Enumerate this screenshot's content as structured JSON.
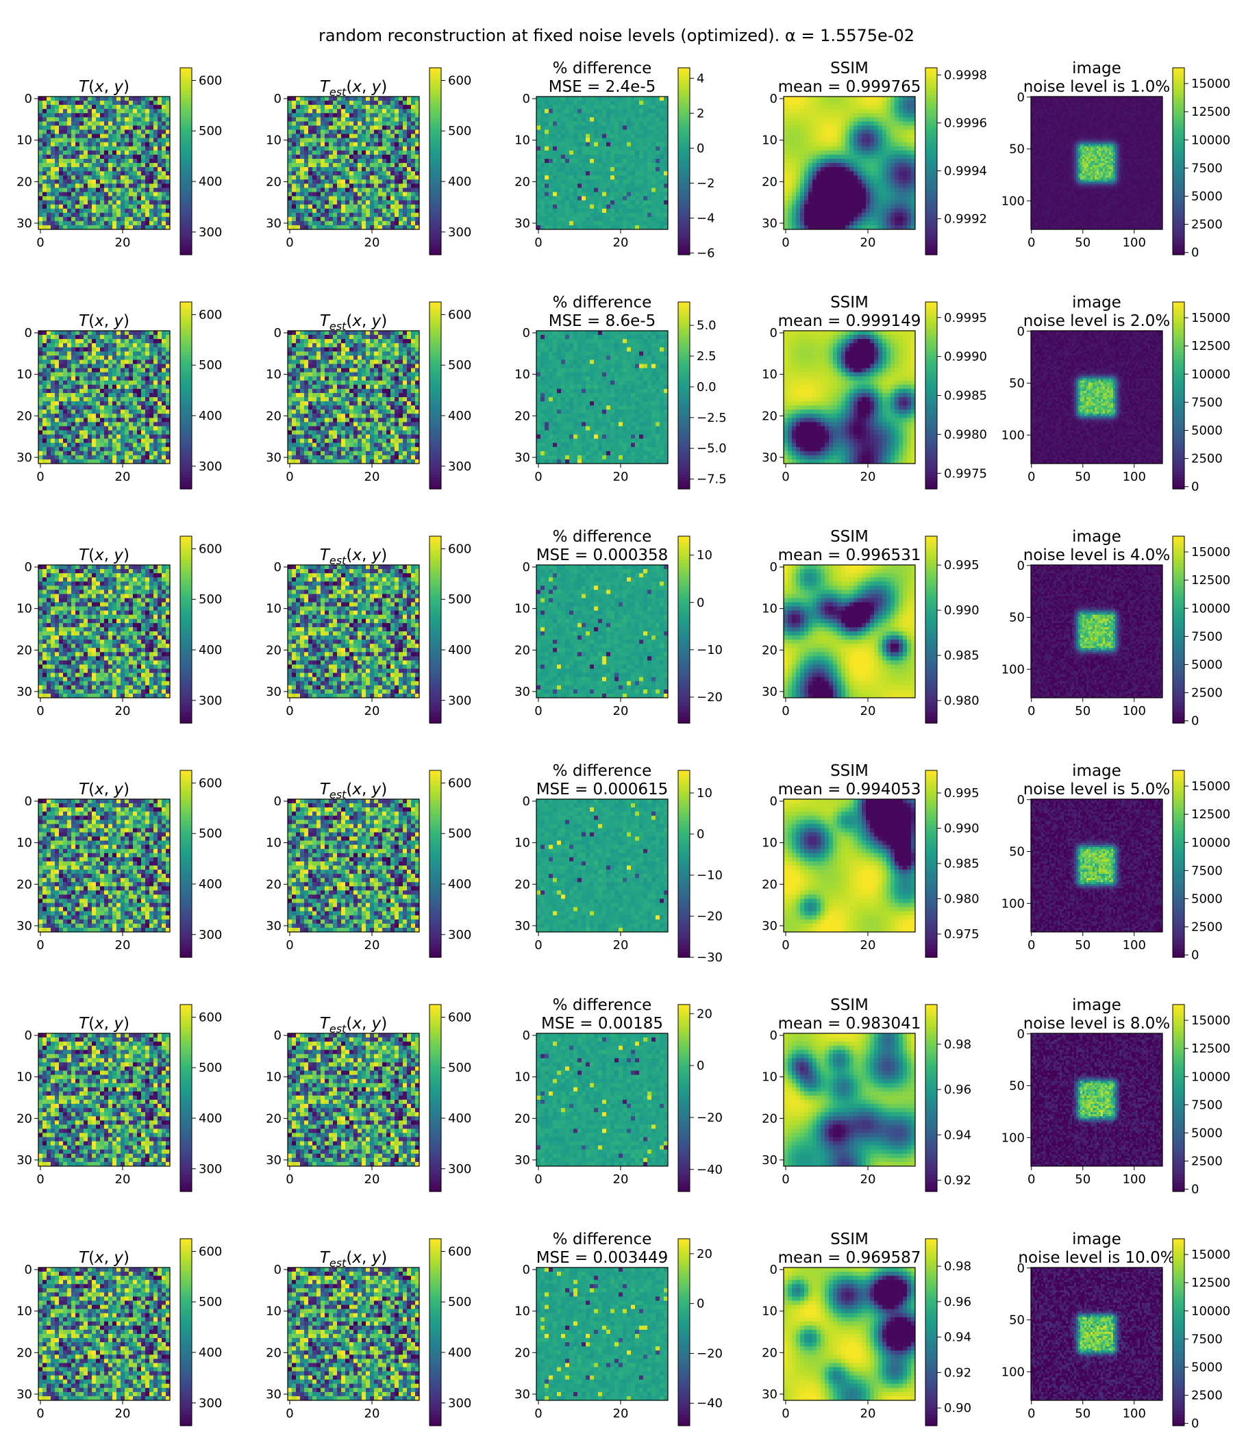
{
  "figure": {
    "suptitle": "random reconstruction at fixed noise levels (optimized). α = 1.5575e-02"
  },
  "colormap": {
    "name": "viridis",
    "stops": [
      "#440154",
      "#482878",
      "#3e4989",
      "#31688e",
      "#26828e",
      "#1f9e89",
      "#35b779",
      "#6ece58",
      "#b5de2b",
      "#fde725"
    ]
  },
  "chart_data": {
    "type": "heatmap",
    "grid": {
      "rows": 6,
      "cols": 5
    },
    "column_types": [
      "T",
      "Test",
      "diff",
      "ssim",
      "image"
    ],
    "panel_types": {
      "T": {
        "xticks": [
          0,
          20
        ],
        "yticks": [
          0,
          10,
          20,
          30
        ],
        "xlim": [
          0,
          31
        ],
        "ylim": [
          0,
          31
        ]
      },
      "Test": {
        "xticks": [
          0,
          20
        ],
        "yticks": [
          0,
          10,
          20,
          30
        ],
        "xlim": [
          0,
          31
        ],
        "ylim": [
          0,
          31
        ]
      },
      "diff": {
        "xticks": [
          0,
          20
        ],
        "yticks": [
          0,
          10,
          20,
          30
        ],
        "xlim": [
          0,
          31
        ],
        "ylim": [
          0,
          31
        ]
      },
      "ssim": {
        "xticks": [
          0,
          20
        ],
        "yticks": [
          0,
          10,
          20,
          30
        ],
        "xlim": [
          0,
          31
        ],
        "ylim": [
          0,
          31
        ]
      },
      "image": {
        "xticks": [
          0,
          50,
          100
        ],
        "yticks": [
          0,
          50,
          100
        ],
        "xlim": [
          0,
          127
        ],
        "ylim": [
          0,
          127
        ]
      }
    },
    "rows": [
      {
        "noise_level": "1.0%",
        "panels": [
          {
            "title": [
              "T(x, y)"
            ],
            "cbar": {
              "min": 255,
              "max": 625,
              "ticks": [
                300,
                400,
                500,
                600
              ],
              "labels": [
                "300",
                "400",
                "500",
                "600"
              ]
            }
          },
          {
            "title": [
              "T_est(x, y)"
            ],
            "cbar": {
              "min": 255,
              "max": 625,
              "ticks": [
                300,
                400,
                500,
                600
              ],
              "labels": [
                "300",
                "400",
                "500",
                "600"
              ]
            }
          },
          {
            "title": [
              "% difference",
              "MSE = 2.4e-5"
            ],
            "cbar": {
              "min": -6.1,
              "max": 4.6,
              "ticks": [
                -6,
                -4,
                -2,
                0,
                2,
                4
              ],
              "labels": [
                "−6",
                "−4",
                "−2",
                "0",
                "2",
                "4"
              ]
            }
          },
          {
            "title": [
              "SSIM",
              "mean = 0.999765"
            ],
            "cbar": {
              "min": 0.99905,
              "max": 0.99983,
              "ticks": [
                0.9992,
                0.9994,
                0.9996,
                0.9998
              ],
              "labels": [
                "0.9992",
                "0.9994",
                "0.9996",
                "0.9998"
              ]
            }
          },
          {
            "title": [
              "image",
              "noise level is 1.0%"
            ],
            "cbar": {
              "min": -200,
              "max": 16400,
              "ticks": [
                0,
                2500,
                5000,
                7500,
                10000,
                12500,
                15000
              ],
              "labels": [
                "0",
                "2500",
                "5000",
                "7500",
                "10000",
                "12500",
                "15000"
              ]
            }
          }
        ]
      },
      {
        "noise_level": "2.0%",
        "panels": [
          {
            "title": [
              "T(x, y)"
            ],
            "cbar": {
              "min": 255,
              "max": 625,
              "ticks": [
                300,
                400,
                500,
                600
              ],
              "labels": [
                "300",
                "400",
                "500",
                "600"
              ]
            }
          },
          {
            "title": [
              "T_est(x, y)"
            ],
            "cbar": {
              "min": 255,
              "max": 625,
              "ticks": [
                300,
                400,
                500,
                600
              ],
              "labels": [
                "300",
                "400",
                "500",
                "600"
              ]
            }
          },
          {
            "title": [
              "% difference",
              "MSE = 8.6e-5"
            ],
            "cbar": {
              "min": -8.3,
              "max": 6.9,
              "ticks": [
                -7.5,
                -5,
                -2.5,
                0,
                2.5,
                5
              ],
              "labels": [
                "−7.5",
                "−5.0",
                "−2.5",
                "0.0",
                "2.5",
                "5.0"
              ]
            }
          },
          {
            "title": [
              "SSIM",
              "mean = 0.999149"
            ],
            "cbar": {
              "min": 0.9973,
              "max": 0.9997,
              "ticks": [
                0.9975,
                0.998,
                0.9985,
                0.999,
                0.9995
              ],
              "labels": [
                "0.9975",
                "0.9980",
                "0.9985",
                "0.9990",
                "0.9995"
              ]
            }
          },
          {
            "title": [
              "image",
              "noise level is 2.0%"
            ],
            "cbar": {
              "min": -200,
              "max": 16400,
              "ticks": [
                0,
                2500,
                5000,
                7500,
                10000,
                12500,
                15000
              ],
              "labels": [
                "0",
                "2500",
                "5000",
                "7500",
                "10000",
                "12500",
                "15000"
              ]
            }
          }
        ]
      },
      {
        "noise_level": "4.0%",
        "panels": [
          {
            "title": [
              "T(x, y)"
            ],
            "cbar": {
              "min": 255,
              "max": 625,
              "ticks": [
                300,
                400,
                500,
                600
              ],
              "labels": [
                "300",
                "400",
                "500",
                "600"
              ]
            }
          },
          {
            "title": [
              "T_est(x, y)"
            ],
            "cbar": {
              "min": 255,
              "max": 625,
              "ticks": [
                300,
                400,
                500,
                600
              ],
              "labels": [
                "300",
                "400",
                "500",
                "600"
              ]
            }
          },
          {
            "title": [
              "% difference",
              "MSE = 0.000358"
            ],
            "cbar": {
              "min": -25.5,
              "max": 14.0,
              "ticks": [
                -20,
                -10,
                0,
                10
              ],
              "labels": [
                "−20",
                "−10",
                "0",
                "10"
              ]
            }
          },
          {
            "title": [
              "SSIM",
              "mean = 0.996531"
            ],
            "cbar": {
              "min": 0.9775,
              "max": 0.9982,
              "ticks": [
                0.98,
                0.985,
                0.99,
                0.995
              ],
              "labels": [
                "0.980",
                "0.985",
                "0.990",
                "0.995"
              ]
            }
          },
          {
            "title": [
              "image",
              "noise level is 4.0%"
            ],
            "cbar": {
              "min": -200,
              "max": 16400,
              "ticks": [
                0,
                2500,
                5000,
                7500,
                10000,
                12500,
                15000
              ],
              "labels": [
                "0",
                "2500",
                "5000",
                "7500",
                "10000",
                "12500",
                "15000"
              ]
            }
          }
        ]
      },
      {
        "noise_level": "5.0%",
        "panels": [
          {
            "title": [
              "T(x, y)"
            ],
            "cbar": {
              "min": 255,
              "max": 625,
              "ticks": [
                300,
                400,
                500,
                600
              ],
              "labels": [
                "300",
                "400",
                "500",
                "600"
              ]
            }
          },
          {
            "title": [
              "T_est(x, y)"
            ],
            "cbar": {
              "min": 255,
              "max": 625,
              "ticks": [
                300,
                400,
                500,
                600
              ],
              "labels": [
                "300",
                "400",
                "500",
                "600"
              ]
            }
          },
          {
            "title": [
              "% difference",
              "MSE = 0.000615"
            ],
            "cbar": {
              "min": -30.0,
              "max": 15.5,
              "ticks": [
                -30,
                -20,
                -10,
                0,
                10
              ],
              "labels": [
                "−30",
                "−20",
                "−10",
                "0",
                "10"
              ]
            }
          },
          {
            "title": [
              "SSIM",
              "mean = 0.994053"
            ],
            "cbar": {
              "min": 0.9717,
              "max": 0.9982,
              "ticks": [
                0.975,
                0.98,
                0.985,
                0.99,
                0.995
              ],
              "labels": [
                "0.975",
                "0.980",
                "0.985",
                "0.990",
                "0.995"
              ]
            }
          },
          {
            "title": [
              "image",
              "noise level is 5.0%"
            ],
            "cbar": {
              "min": -200,
              "max": 16400,
              "ticks": [
                0,
                2500,
                5000,
                7500,
                10000,
                12500,
                15000
              ],
              "labels": [
                "0",
                "2500",
                "5000",
                "7500",
                "10000",
                "12500",
                "15000"
              ]
            }
          }
        ]
      },
      {
        "noise_level": "8.0%",
        "panels": [
          {
            "title": [
              "T(x, y)"
            ],
            "cbar": {
              "min": 255,
              "max": 625,
              "ticks": [
                300,
                400,
                500,
                600
              ],
              "labels": [
                "300",
                "400",
                "500",
                "600"
              ]
            }
          },
          {
            "title": [
              "T_est(x, y)"
            ],
            "cbar": {
              "min": 255,
              "max": 625,
              "ticks": [
                300,
                400,
                500,
                600
              ],
              "labels": [
                "300",
                "400",
                "500",
                "600"
              ]
            }
          },
          {
            "title": [
              "% difference",
              "MSE = 0.00185"
            ],
            "cbar": {
              "min": -48.5,
              "max": 23.5,
              "ticks": [
                -40,
                -20,
                0,
                20
              ],
              "labels": [
                "−40",
                "−20",
                "0",
                "20"
              ]
            }
          },
          {
            "title": [
              "SSIM",
              "mean = 0.983041"
            ],
            "cbar": {
              "min": 0.915,
              "max": 0.9975,
              "ticks": [
                0.92,
                0.94,
                0.96,
                0.98
              ],
              "labels": [
                "0.92",
                "0.94",
                "0.96",
                "0.98"
              ]
            }
          },
          {
            "title": [
              "image",
              "noise level is 8.0%"
            ],
            "cbar": {
              "min": -200,
              "max": 16400,
              "ticks": [
                0,
                2500,
                5000,
                7500,
                10000,
                12500,
                15000
              ],
              "labels": [
                "0",
                "2500",
                "5000",
                "7500",
                "10000",
                "12500",
                "15000"
              ]
            }
          }
        ]
      },
      {
        "noise_level": "10.0%",
        "panels": [
          {
            "title": [
              "T(x, y)"
            ],
            "cbar": {
              "min": 255,
              "max": 625,
              "ticks": [
                300,
                400,
                500,
                600
              ],
              "labels": [
                "300",
                "400",
                "500",
                "600"
              ]
            }
          },
          {
            "title": [
              "T_est(x, y)"
            ],
            "cbar": {
              "min": 255,
              "max": 625,
              "ticks": [
                300,
                400,
                500,
                600
              ],
              "labels": [
                "300",
                "400",
                "500",
                "600"
              ]
            }
          },
          {
            "title": [
              "% difference",
              "MSE = 0.003449"
            ],
            "cbar": {
              "min": -49.0,
              "max": 26.0,
              "ticks": [
                -40,
                -20,
                0,
                20
              ],
              "labels": [
                "−40",
                "−20",
                "0",
                "20"
              ]
            }
          },
          {
            "title": [
              "SSIM",
              "mean = 0.969587"
            ],
            "cbar": {
              "min": 0.89,
              "max": 0.9955,
              "ticks": [
                0.9,
                0.92,
                0.94,
                0.96,
                0.98
              ],
              "labels": [
                "0.90",
                "0.92",
                "0.94",
                "0.96",
                "0.98"
              ]
            }
          },
          {
            "title": [
              "image",
              "noise level is 10.0%"
            ],
            "cbar": {
              "min": -200,
              "max": 16400,
              "ticks": [
                0,
                2500,
                5000,
                7500,
                10000,
                12500,
                15000
              ],
              "labels": [
                "0",
                "2500",
                "5000",
                "7500",
                "10000",
                "12500",
                "15000"
              ]
            }
          }
        ]
      }
    ]
  }
}
